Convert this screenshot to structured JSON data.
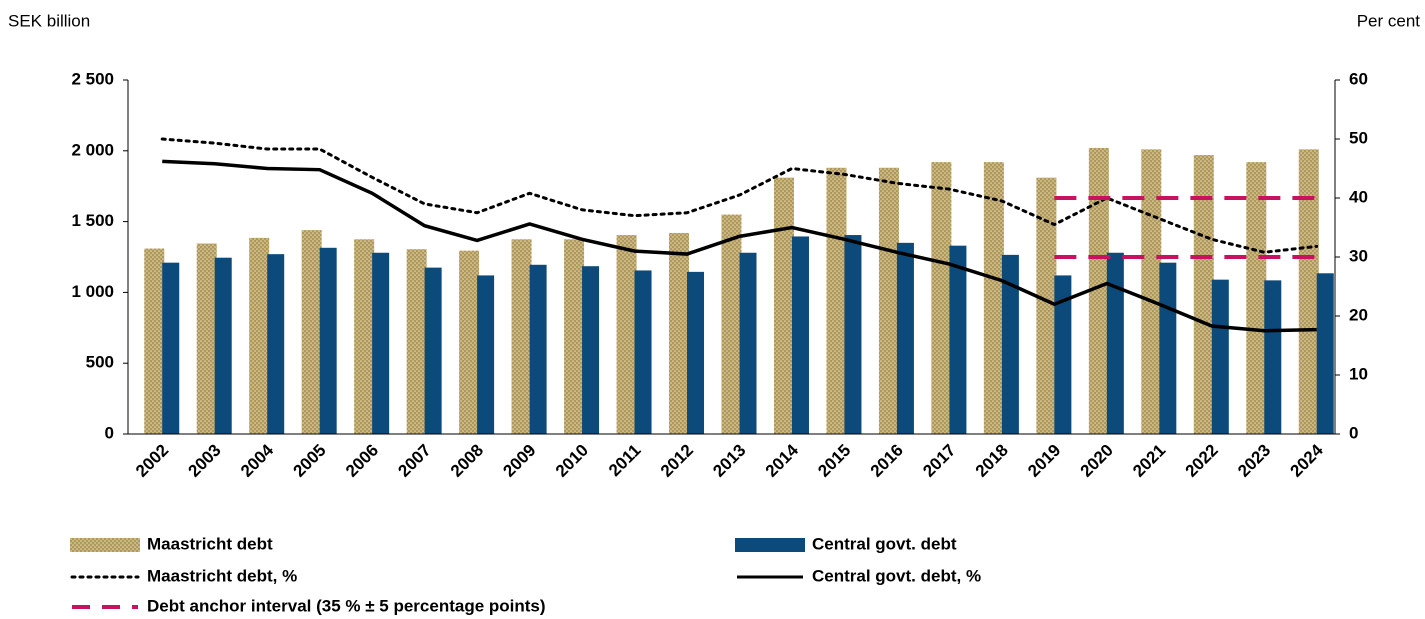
{
  "chart_data": {
    "type": "bar_line",
    "y_label": "SEK billion",
    "y2_label": "Per cent",
    "categories": [
      "2002",
      "2003",
      "2004",
      "2005",
      "2006",
      "2007",
      "2008",
      "2009",
      "2010",
      "2011",
      "2012",
      "2013",
      "2014",
      "2015",
      "2016",
      "2017",
      "2018",
      "2019",
      "2020",
      "2021",
      "2022",
      "2023",
      "2024"
    ],
    "ylim": [
      0,
      2500
    ],
    "yticks": [
      0,
      500,
      {
        "value": 1000,
        "label": "1 000"
      },
      {
        "value": 1500,
        "label": "1 500"
      },
      {
        "value": 2000,
        "label": "2 000"
      },
      {
        "value": 2500,
        "label": "2 500"
      }
    ],
    "y2lim": [
      0,
      60
    ],
    "y2ticks": [
      0,
      10,
      20,
      30,
      40,
      50,
      60
    ],
    "series": [
      {
        "name": "Maastricht debt",
        "type": "bar",
        "color": "#b09858",
        "values": [
          1310,
          1345,
          1385,
          1440,
          1375,
          1305,
          1295,
          1375,
          1375,
          1405,
          1420,
          1550,
          1810,
          1880,
          1880,
          1920,
          1920,
          1810,
          2020,
          2010,
          1970,
          1920,
          2010
        ]
      },
      {
        "name": "Central govt. debt",
        "type": "bar",
        "color": "#0b4a7a",
        "values": [
          1210,
          1245,
          1270,
          1315,
          1280,
          1175,
          1120,
          1195,
          1185,
          1155,
          1145,
          1280,
          1395,
          1405,
          1350,
          1330,
          1265,
          1120,
          1280,
          1210,
          1090,
          1085,
          1135
        ]
      },
      {
        "name": "Maastricht debt, %",
        "type": "line",
        "axis": "y2",
        "color": "#000000",
        "dash": "dotted",
        "values": [
          50,
          49.3,
          48.3,
          48.3,
          43.5,
          39,
          37.5,
          40.8,
          38,
          37,
          37.5,
          40.5,
          45,
          44,
          42.5,
          41.5,
          39.5,
          35.5,
          40,
          36.5,
          33,
          30.8,
          31.8
        ]
      },
      {
        "name": "Central govt. debt, %",
        "type": "line",
        "axis": "y2",
        "color": "#000000",
        "dash": "solid",
        "values": [
          46.2,
          45.8,
          45,
          44.8,
          40.8,
          35.3,
          32.8,
          35.6,
          33,
          31,
          30.5,
          33.5,
          35,
          33,
          30.8,
          28.8,
          26,
          22,
          25.5,
          22,
          18.3,
          17.5,
          17.7
        ]
      },
      {
        "name": "Debt anchor interval (35 % ± 5 percentage points)",
        "type": "interval",
        "axis": "y2",
        "color": "#c8125f",
        "dash": "dashed",
        "upper": [
          null,
          null,
          null,
          null,
          null,
          null,
          null,
          null,
          null,
          null,
          null,
          null,
          null,
          null,
          null,
          null,
          null,
          40,
          40,
          40,
          40,
          40,
          40
        ],
        "lower": [
          null,
          null,
          null,
          null,
          null,
          null,
          null,
          null,
          null,
          null,
          null,
          null,
          null,
          null,
          null,
          null,
          null,
          30,
          30,
          30,
          30,
          30,
          30
        ]
      }
    ]
  }
}
